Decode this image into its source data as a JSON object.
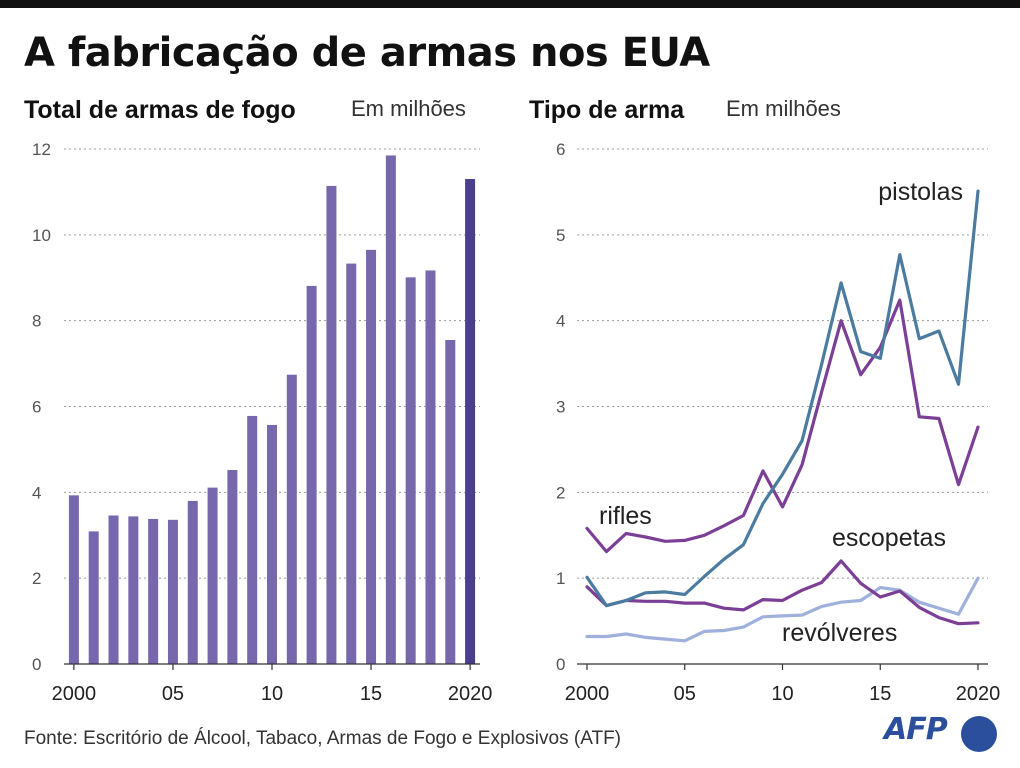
{
  "title": "A fabricação de armas nos EUA",
  "source": "Fonte:  Escritório de Álcool, Tabaco, Armas de Fogo e Explosivos (ATF)",
  "logo": {
    "text": "AFP",
    "color": "#2b4f9c",
    "icon": "afp-logo-dot"
  },
  "colors": {
    "bar": "#7768ad",
    "bar_highlight": "#4a3e8f",
    "pistolas": "#4b7ca0",
    "rifles": "#7b3f96",
    "escopetas": "#7b3f96",
    "revolveres": "#9fb0dc"
  },
  "chart_data": [
    {
      "type": "bar",
      "title": "Total de armas de fogo",
      "unit": "Em milhões",
      "x": [
        2000,
        2001,
        2002,
        2003,
        2004,
        2005,
        2006,
        2007,
        2008,
        2009,
        2010,
        2011,
        2012,
        2013,
        2014,
        2015,
        2016,
        2017,
        2018,
        2019,
        2020
      ],
      "x_tick_labels": [
        "2000",
        "05",
        "10",
        "15",
        "2020"
      ],
      "x_tick_values": [
        2000,
        2005,
        2010,
        2015,
        2020
      ],
      "values": [
        3.93,
        3.09,
        3.46,
        3.44,
        3.38,
        3.36,
        3.8,
        4.11,
        4.52,
        5.78,
        5.57,
        6.74,
        8.81,
        11.14,
        9.33,
        9.65,
        11.85,
        9.01,
        9.17,
        7.55,
        11.3
      ],
      "ylim": [
        0,
        12
      ],
      "y_ticks": [
        0,
        2,
        4,
        6,
        8,
        10,
        12
      ],
      "grid": true
    },
    {
      "type": "line",
      "title": "Tipo de arma",
      "unit": "Em milhões",
      "x": [
        2000,
        2001,
        2002,
        2003,
        2004,
        2005,
        2006,
        2007,
        2008,
        2009,
        2010,
        2011,
        2012,
        2013,
        2014,
        2015,
        2016,
        2017,
        2018,
        2019,
        2020
      ],
      "x_tick_labels": [
        "2000",
        "05",
        "10",
        "15",
        "2020"
      ],
      "x_tick_values": [
        2000,
        2005,
        2010,
        2015,
        2020
      ],
      "ylim": [
        0,
        6
      ],
      "y_ticks": [
        0,
        1,
        2,
        3,
        4,
        5,
        6
      ],
      "grid": true,
      "series": [
        {
          "name": "pistolas",
          "values": [
            1.01,
            0.68,
            0.74,
            0.83,
            0.84,
            0.81,
            1.02,
            1.22,
            1.39,
            1.87,
            2.21,
            2.6,
            3.49,
            4.44,
            3.64,
            3.56,
            4.77,
            3.79,
            3.88,
            3.26,
            5.51
          ]
        },
        {
          "name": "rifles",
          "values": [
            1.58,
            1.31,
            1.52,
            1.48,
            1.43,
            1.44,
            1.5,
            1.61,
            1.73,
            2.25,
            1.83,
            2.32,
            3.17,
            4.0,
            3.37,
            3.69,
            4.24,
            2.88,
            2.86,
            2.09,
            2.76
          ]
        },
        {
          "name": "escopetas",
          "values": [
            0.9,
            0.68,
            0.74,
            0.73,
            0.73,
            0.71,
            0.71,
            0.65,
            0.63,
            0.75,
            0.74,
            0.86,
            0.95,
            1.2,
            0.94,
            0.78,
            0.85,
            0.66,
            0.54,
            0.47,
            0.48
          ]
        },
        {
          "name": "revólveres",
          "values": [
            0.32,
            0.32,
            0.35,
            0.31,
            0.29,
            0.27,
            0.38,
            0.39,
            0.43,
            0.55,
            0.56,
            0.57,
            0.67,
            0.72,
            0.74,
            0.89,
            0.86,
            0.72,
            0.65,
            0.58,
            1.0
          ]
        }
      ]
    }
  ]
}
